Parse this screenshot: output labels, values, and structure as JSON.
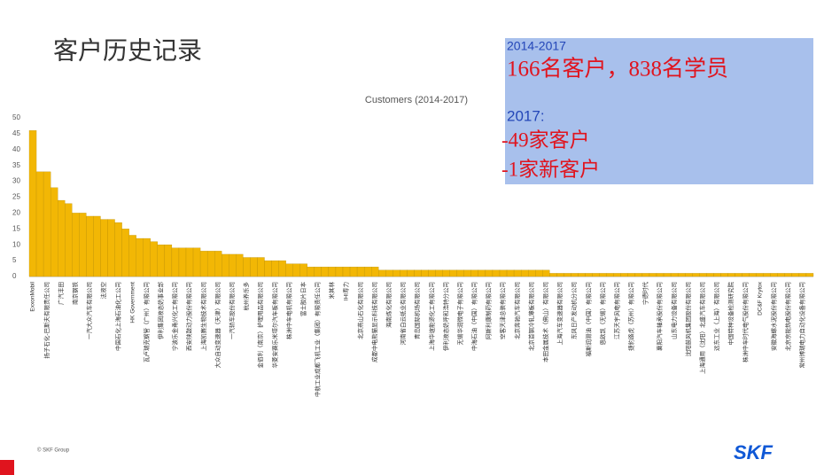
{
  "header": {
    "title": "客户历史记录"
  },
  "info_box": {
    "period": "2014-2017",
    "summary": "166名客户，838名学员",
    "year": "2017:",
    "line1": "-49家客户",
    "line2": "-1家新客户"
  },
  "footer": {
    "copyright": "© SKF Group",
    "logo": "SKF"
  },
  "chart_data": {
    "type": "bar",
    "title": "Customers (2014-2017)",
    "color": "#f2b705",
    "ylim": [
      0,
      50
    ],
    "yticks": [
      0,
      5,
      10,
      15,
      20,
      25,
      30,
      35,
      40,
      45,
      50
    ],
    "grid": false,
    "categories": [
      "ExxonMobil",
      null,
      "扬子石化-巴斯夫有限责任公司",
      null,
      "广汽丰田",
      null,
      "南京钢铁",
      null,
      "一汽大众汽车有限公司",
      null,
      "法液空",
      null,
      "中国石化上海石油化工公司",
      null,
      "HK Government",
      null,
      "瓦卢瑞克钢管（广州）有限公司",
      null,
      "伊利集团液态奶事业部",
      null,
      "宁波乐金甬兴化工有限公司",
      null,
      "西安陕鼓动力股份有限公司",
      null,
      "上海凯赛生物技术有限公司",
      null,
      "大众自动变速器（天津）有限公司",
      null,
      "一汽轿车股份有限公司",
      null,
      "杭州养乐多",
      null,
      "金佰利（南京）护理用品有限公司",
      null,
      "华菱安赛乐米塔尔汽车板有限公司",
      null,
      "株洲中车电机有限公司",
      null,
      "富士胶片日本",
      null,
      "中航工业成都飞机工业（集团）有限责任公司",
      null,
      "米其林",
      null,
      "IHI寿力",
      null,
      "北京燕山石化有限公司",
      null,
      "成都中电熊猫显示科技有限公司",
      null,
      "海南炼化有限公司",
      null,
      "河南省白云纸业有限公司",
      null,
      "青岛国际机场有限公司",
      null,
      "上海华谊能源化工有限公司",
      null,
      "伊利液态奶呼和浩特分公司",
      null,
      "无锡华润微电子有限公司",
      null,
      "中海石油（中国）有限公司",
      null,
      "阿斯利康制药有限公司",
      null,
      "空客天津总装有限公司",
      null,
      "北京奔驰汽车有限公司",
      null,
      "北京首钢冷轧薄板有限公司",
      null,
      "本田金属技术（佛山）有限公司",
      null,
      "上海汽车变速器有限公司",
      null,
      "东风日产发动机分公司",
      null,
      "福斯润滑油（中国）有限公司",
      null,
      "恩欧凯（无锡）有限公司",
      null,
      "江苏天宇风电有限公司",
      null,
      "捷豹路虎（苏州）有限公司",
      null,
      "宁德时代",
      null,
      "襄阳汽车轴承股份有限公司",
      null,
      "山东电力设备有限公司",
      null,
      "沈阳鼓风机集团股份有限公司",
      null,
      "上海通用（沈阳）北盛汽车有限公司",
      null,
      "远东工业（上海）有限公司",
      null,
      "中国特种设备检测研究院",
      null,
      "株洲中车时代电气股份有限公司",
      null,
      "DC&F Krytox",
      null,
      "安徽海螺水泥股份有限公司",
      null,
      "北京京能热电股份有限公司",
      null,
      "常州博瑞电力自动化设备有限公司",
      null
    ],
    "values": [
      46,
      33,
      33,
      28,
      24,
      23,
      20,
      20,
      19,
      19,
      18,
      18,
      17,
      15,
      13,
      12,
      12,
      11,
      10,
      10,
      9,
      9,
      9,
      9,
      8,
      8,
      8,
      7,
      7,
      7,
      6,
      6,
      6,
      5,
      5,
      5,
      4,
      4,
      4,
      3,
      3,
      3,
      3,
      3,
      3,
      3,
      3,
      3,
      3,
      2,
      2,
      2,
      2,
      2,
      2,
      2,
      2,
      2,
      2,
      2,
      2,
      2,
      2,
      2,
      2,
      2,
      2,
      2,
      2,
      2,
      2,
      2,
      2,
      1,
      1,
      1,
      1,
      1,
      1,
      1,
      1,
      1,
      1,
      1,
      1,
      1,
      1,
      1,
      1,
      1,
      1,
      1,
      1,
      1,
      1,
      1,
      1,
      1,
      1,
      1,
      1,
      1,
      1,
      1,
      1,
      1,
      1,
      1,
      1,
      1
    ]
  }
}
